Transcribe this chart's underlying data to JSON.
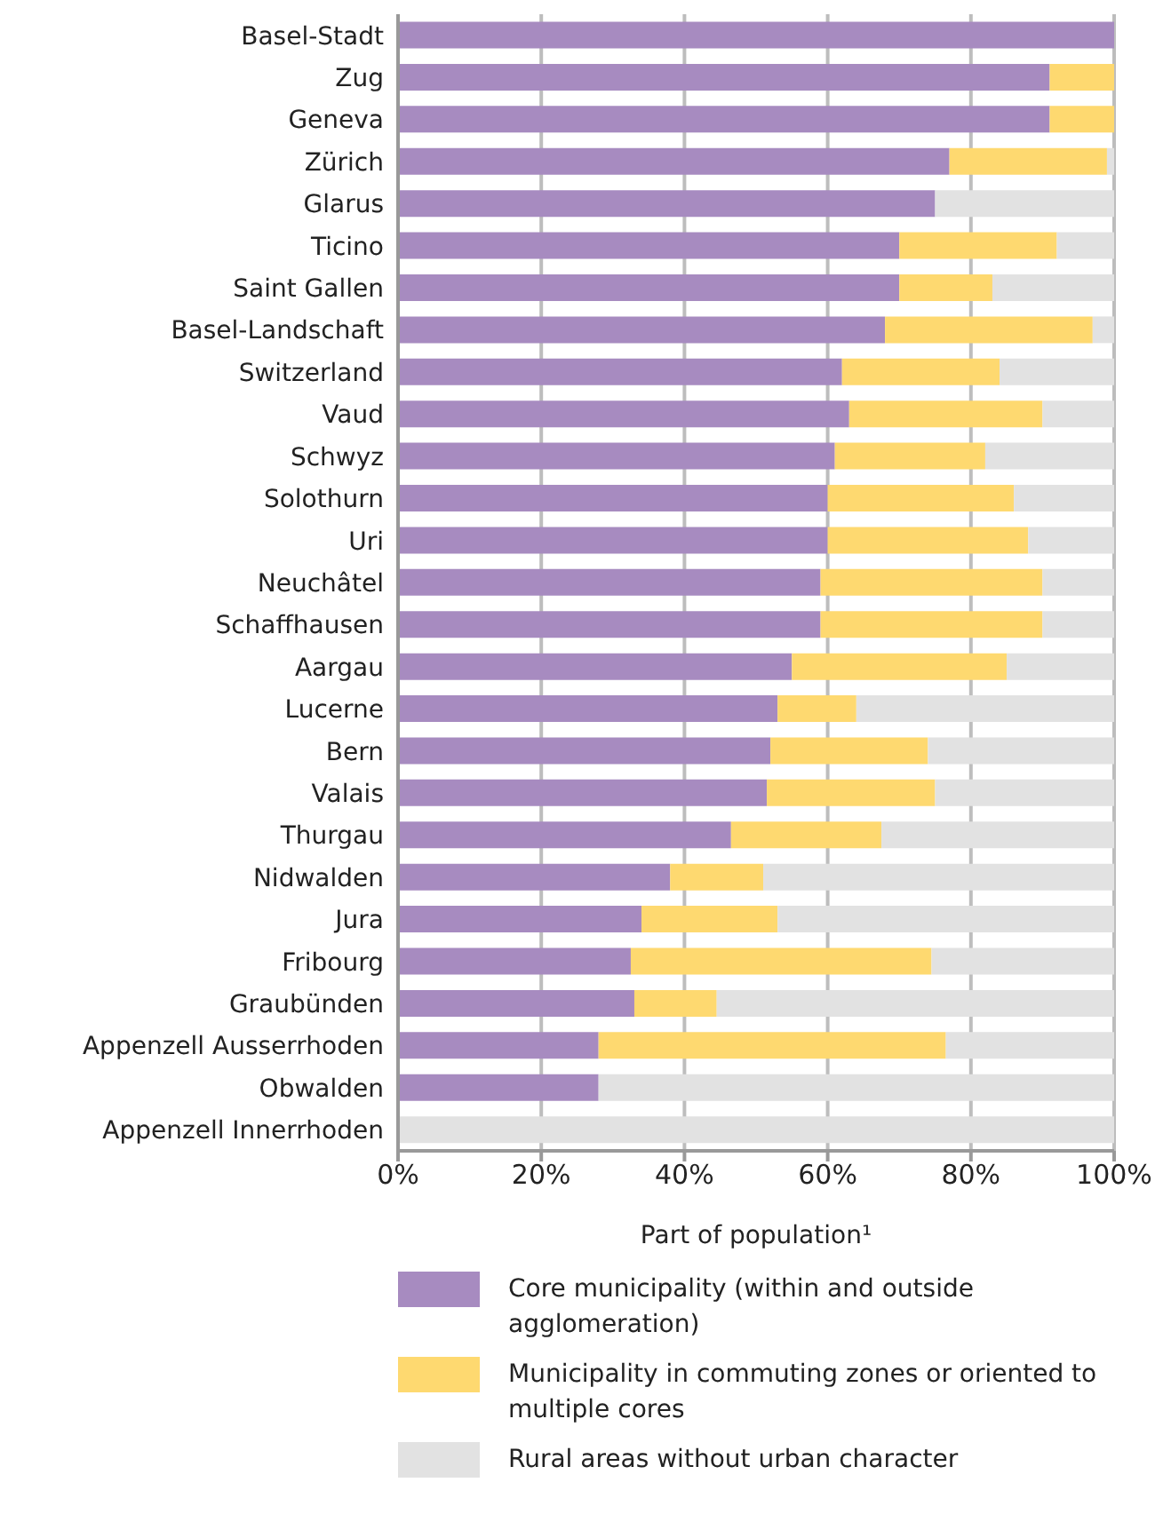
{
  "chart_data": {
    "type": "bar",
    "orientation": "horizontal",
    "stacked": true,
    "categories": [
      "Basel-Stadt",
      "Zug",
      "Geneva",
      "Zürich",
      "Glarus",
      "Ticino",
      "Saint Gallen",
      "Basel-Landschaft",
      "Switzerland",
      "Vaud",
      "Schwyz",
      "Solothurn",
      "Uri",
      "Neuchâtel",
      "Schaffhausen",
      "Aargau",
      "Lucerne",
      "Bern",
      "Valais",
      "Thurgau",
      "Nidwalden",
      "Jura",
      "Fribourg",
      "Graubünden",
      "Appenzell Ausserrhoden",
      "Obwalden",
      "Appenzell Innerrhoden"
    ],
    "series": [
      {
        "name": "Core municipality (within and outside agglomeration)",
        "color": "#a78bc0",
        "values": [
          100,
          91,
          91,
          77,
          75,
          70,
          70,
          68,
          62,
          63,
          61,
          60,
          60,
          59,
          59,
          55,
          53,
          52,
          51.5,
          46.5,
          38,
          34,
          32.5,
          33,
          28,
          28,
          0
        ]
      },
      {
        "name": "Municipality in commuting zones or oriented to multiple cores",
        "color": "#fed970",
        "values": [
          0,
          9,
          9,
          22,
          0,
          22,
          13,
          29,
          22,
          27,
          21,
          26,
          28,
          31,
          31,
          30,
          11,
          22,
          23.5,
          21,
          13,
          19,
          42,
          11.5,
          48.5,
          0,
          0
        ]
      },
      {
        "name": "Rural areas without urban character",
        "color": "#e2e2e2",
        "values": [
          0,
          0,
          0,
          1,
          25,
          8,
          17,
          3,
          16,
          10,
          18,
          14,
          12,
          10,
          10,
          15,
          36,
          26,
          25,
          32.5,
          49,
          47,
          25.5,
          55.5,
          23.5,
          72,
          100
        ]
      }
    ],
    "xlabel": "Part of population¹",
    "xlim": [
      0,
      100
    ],
    "xticks": [
      {
        "value": 0,
        "label": "0%"
      },
      {
        "value": 20,
        "label": "20%"
      },
      {
        "value": 40,
        "label": "40%"
      },
      {
        "value": 60,
        "label": "60%"
      },
      {
        "value": 80,
        "label": "80%"
      },
      {
        "value": 100,
        "label": "100%"
      }
    ],
    "grid": "x",
    "legend": "bottom"
  }
}
